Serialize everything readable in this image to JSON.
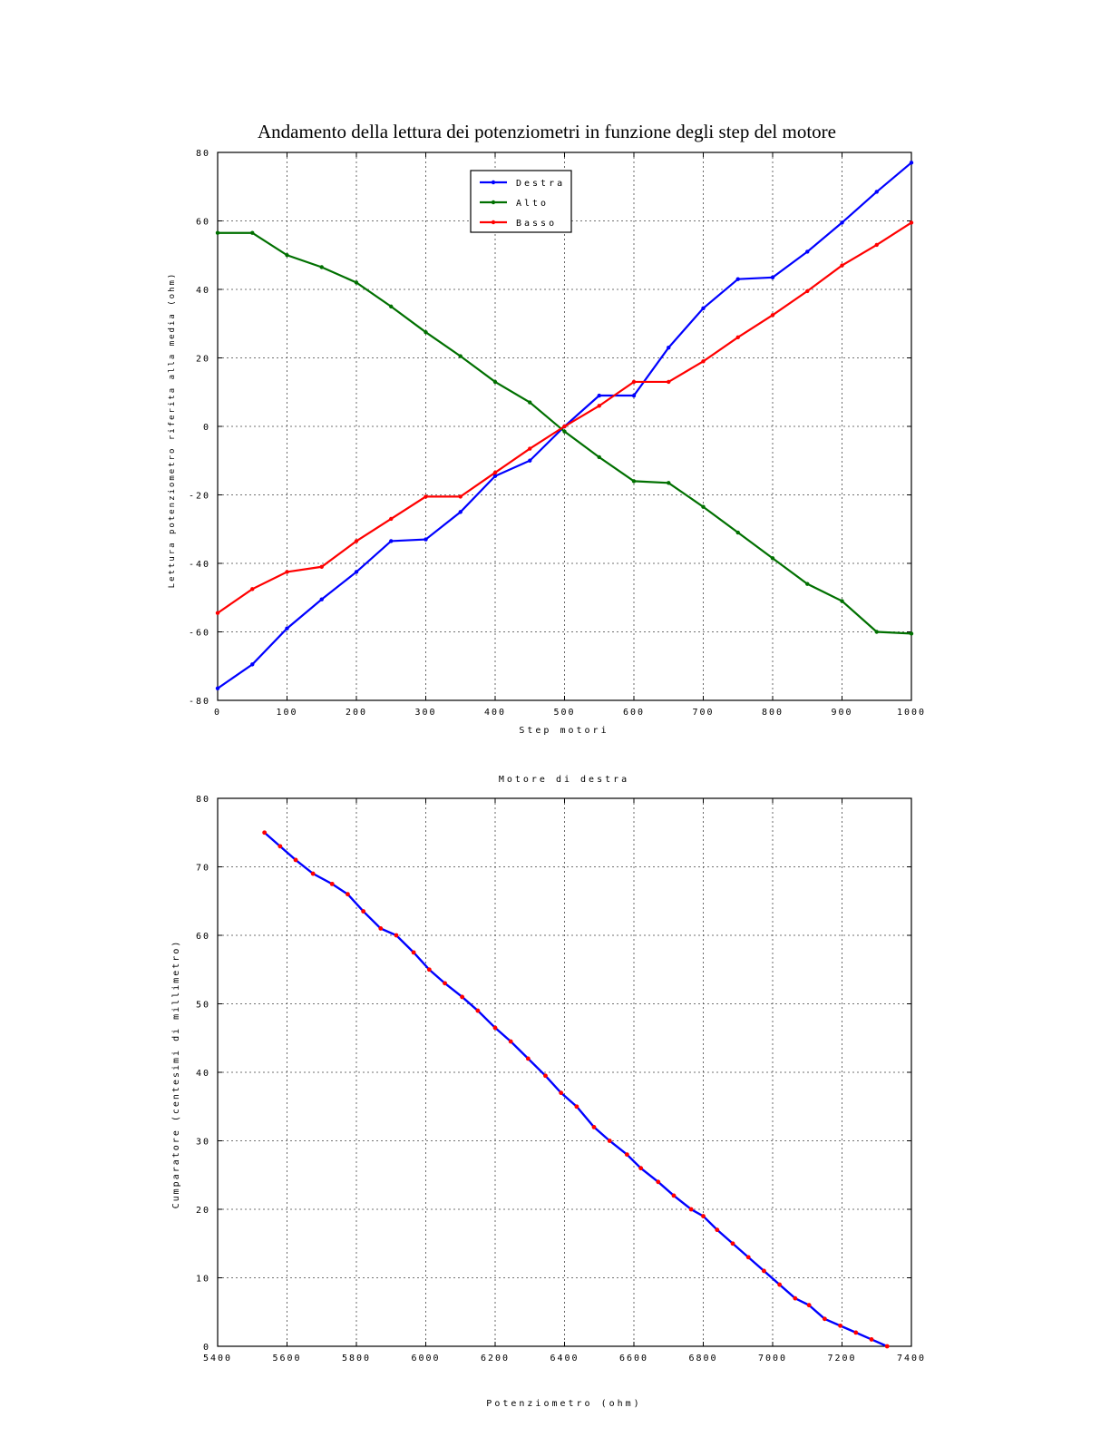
{
  "chart_data": [
    {
      "type": "line",
      "title": "Andamento della lettura dei potenziometri in funzione degli step del motore",
      "xlabel": "Step motori",
      "ylabel": "Lettura potenziometro riferita alla media (ohm)",
      "xlim": [
        0,
        1000
      ],
      "ylim": [
        -80,
        80
      ],
      "xticks": [
        0,
        100,
        200,
        300,
        400,
        500,
        600,
        700,
        800,
        900,
        1000
      ],
      "yticks": [
        -80,
        -60,
        -40,
        -20,
        0,
        20,
        40,
        60,
        80
      ],
      "grid": true,
      "legend": "top-center",
      "x": [
        0,
        50,
        100,
        150,
        200,
        250,
        300,
        350,
        400,
        450,
        500,
        550,
        600,
        650,
        700,
        750,
        800,
        850,
        900,
        950,
        1000
      ],
      "series": [
        {
          "name": "Destra",
          "color": "#0000ff",
          "values": [
            -76.5,
            -69.5,
            -59,
            -50.5,
            -42.5,
            -33.5,
            -33,
            -25,
            -14.5,
            -10,
            0,
            9,
            9,
            23,
            34.5,
            43,
            43.5,
            51,
            59.5,
            68.5,
            77
          ]
        },
        {
          "name": "Alto",
          "color": "#007000",
          "values": [
            56.5,
            56.5,
            50,
            46.5,
            42,
            35,
            27.5,
            20.5,
            13,
            7,
            -1.5,
            -9,
            -16,
            -16.5,
            -23.5,
            -31,
            -38.5,
            -46,
            -51,
            -60,
            -60.5
          ]
        },
        {
          "name": "Basso",
          "color": "#ff0000",
          "values": [
            -54.5,
            -47.5,
            -42.5,
            -41,
            -33.5,
            -27,
            -20.5,
            -20.5,
            -13.5,
            -6.5,
            0,
            6,
            13,
            13,
            19,
            26,
            32.5,
            39.5,
            47,
            53,
            59.5
          ]
        }
      ]
    },
    {
      "type": "line",
      "title": "Motore di destra",
      "xlabel": "Potenziometro (ohm)",
      "ylabel": "Cumparatore (centesimi di millimetro)",
      "xlim": [
        5400,
        7400
      ],
      "ylim": [
        0,
        80
      ],
      "xticks": [
        5400,
        5600,
        5800,
        6000,
        6200,
        6400,
        6600,
        6800,
        7000,
        7200,
        7400
      ],
      "yticks": [
        0,
        10,
        20,
        30,
        40,
        50,
        60,
        70,
        80
      ],
      "grid": true,
      "series": [
        {
          "color": "#0000ff",
          "marker_color": "#ff0000",
          "x": [
            5535,
            5580,
            5625,
            5675,
            5730,
            5775,
            5820,
            5870,
            5915,
            5965,
            6010,
            6055,
            6105,
            6150,
            6200,
            6245,
            6295,
            6345,
            6390,
            6435,
            6485,
            6530,
            6580,
            6620,
            6670,
            6715,
            6765,
            6800,
            6840,
            6885,
            6930,
            6975,
            7020,
            7065,
            7105,
            7150,
            7195,
            7240,
            7285,
            7330
          ],
          "y": [
            75,
            73,
            71,
            69,
            67.5,
            66,
            63.5,
            61,
            60,
            57.5,
            55,
            53,
            51,
            49,
            46.5,
            44.5,
            42,
            39.5,
            37,
            35,
            32,
            30,
            28,
            26,
            24,
            22,
            20,
            19,
            17,
            15,
            13,
            11,
            9,
            7,
            6,
            4,
            3,
            2,
            1,
            0
          ]
        }
      ]
    }
  ]
}
